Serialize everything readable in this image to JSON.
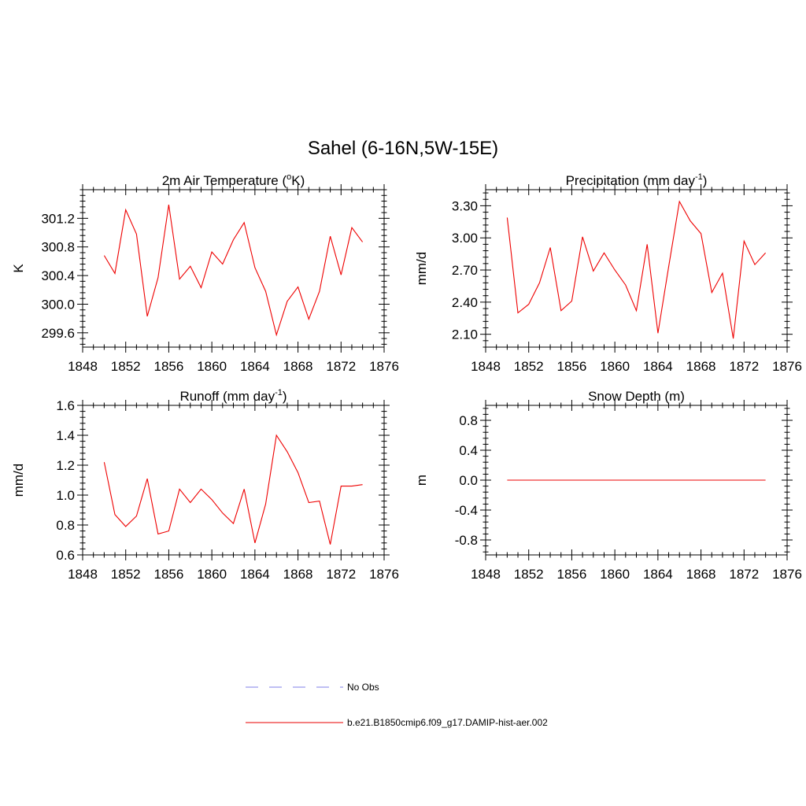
{
  "figure": {
    "title": "Sahel (6-16N,5W-15E)"
  },
  "legend": {
    "items": [
      {
        "label": "No Obs",
        "color": "#9999ee",
        "dash": true
      },
      {
        "label": "b.e21.B1850cmip6.f09_g17.DAMIP-hist-aer.002",
        "color": "#ee3333",
        "dash": false
      }
    ]
  },
  "chart_data": [
    {
      "type": "line",
      "title": "2m Air Temperature (oK)",
      "title_parts": {
        "pre": "2m Air Temperature (",
        "sup": "o",
        "post": "K)"
      },
      "ylabel": "K",
      "xlim": [
        1848,
        1876
      ],
      "ylim": [
        299.4,
        301.6
      ],
      "xticks": [
        1848,
        1852,
        1856,
        1860,
        1864,
        1868,
        1872,
        1876
      ],
      "yticks": [
        "299.6",
        "300.0",
        "300.4",
        "300.8",
        "301.2"
      ],
      "x": [
        1850,
        1851,
        1852,
        1853,
        1854,
        1855,
        1856,
        1857,
        1858,
        1859,
        1860,
        1861,
        1862,
        1863,
        1864,
        1865,
        1866,
        1867,
        1868,
        1869,
        1870,
        1871,
        1872,
        1873,
        1874
      ],
      "series": [
        {
          "color": "#ee0000",
          "values": [
            300.68,
            300.43,
            301.32,
            300.98,
            299.83,
            300.37,
            301.39,
            300.35,
            300.53,
            300.23,
            300.73,
            300.56,
            300.9,
            301.14,
            300.51,
            300.18,
            299.57,
            300.04,
            300.24,
            299.79,
            300.18,
            300.95,
            300.41,
            301.07,
            300.87
          ]
        }
      ]
    },
    {
      "type": "line",
      "title": "Precipitation (mm day-1)",
      "title_parts": {
        "pre": "Precipitation (mm day",
        "sup": "-1",
        "post": ")"
      },
      "ylabel": "mm/d",
      "xlim": [
        1848,
        1876
      ],
      "ylim": [
        1.98,
        3.45
      ],
      "xticks": [
        1848,
        1852,
        1856,
        1860,
        1864,
        1868,
        1872,
        1876
      ],
      "yticks": [
        "2.10",
        "2.40",
        "2.70",
        "3.00",
        "3.30"
      ],
      "x": [
        1850,
        1851,
        1852,
        1853,
        1854,
        1855,
        1856,
        1857,
        1858,
        1859,
        1860,
        1861,
        1862,
        1863,
        1864,
        1865,
        1866,
        1867,
        1868,
        1869,
        1870,
        1871,
        1872,
        1873,
        1874
      ],
      "series": [
        {
          "color": "#ee0000",
          "values": [
            3.19,
            2.3,
            2.38,
            2.58,
            2.91,
            2.32,
            2.41,
            3.01,
            2.69,
            2.86,
            2.7,
            2.56,
            2.32,
            2.94,
            2.11,
            2.73,
            3.34,
            3.16,
            3.04,
            2.49,
            2.67,
            2.06,
            2.97,
            2.75,
            2.86
          ]
        }
      ]
    },
    {
      "type": "line",
      "title": "Runoff (mm day-1)",
      "title_parts": {
        "pre": "Runoff (mm day",
        "sup": "-1",
        "post": ")"
      },
      "ylabel": "mm/d",
      "xlim": [
        1848,
        1876
      ],
      "ylim": [
        0.6,
        1.6
      ],
      "xticks": [
        1848,
        1852,
        1856,
        1860,
        1864,
        1868,
        1872,
        1876
      ],
      "yticks": [
        "0.6",
        "0.8",
        "1.0",
        "1.2",
        "1.4",
        "1.6"
      ],
      "x": [
        1850,
        1851,
        1852,
        1853,
        1854,
        1855,
        1856,
        1857,
        1858,
        1859,
        1860,
        1861,
        1862,
        1863,
        1864,
        1865,
        1866,
        1867,
        1868,
        1869,
        1870,
        1871,
        1872,
        1873,
        1874
      ],
      "series": [
        {
          "color": "#ee0000",
          "values": [
            1.22,
            0.87,
            0.79,
            0.86,
            1.11,
            0.74,
            0.76,
            1.04,
            0.95,
            1.04,
            0.97,
            0.88,
            0.81,
            1.04,
            0.68,
            0.94,
            1.4,
            1.29,
            1.15,
            0.95,
            0.96,
            0.67,
            1.06,
            1.06,
            1.07
          ]
        }
      ]
    },
    {
      "type": "line",
      "title": "Snow Depth (m)",
      "title_parts": {
        "pre": "Snow Depth (m)",
        "sup": "",
        "post": ""
      },
      "ylabel": "m",
      "xlim": [
        1848,
        1876
      ],
      "ylim": [
        -1.0,
        1.0
      ],
      "xticks": [
        1848,
        1852,
        1856,
        1860,
        1864,
        1868,
        1872,
        1876
      ],
      "yticks": [
        "-0.8",
        "-0.4",
        "0.0",
        "0.4",
        "0.8"
      ],
      "x": [
        1850,
        1851,
        1852,
        1853,
        1854,
        1855,
        1856,
        1857,
        1858,
        1859,
        1860,
        1861,
        1862,
        1863,
        1864,
        1865,
        1866,
        1867,
        1868,
        1869,
        1870,
        1871,
        1872,
        1873,
        1874
      ],
      "series": [
        {
          "color": "#ee0000",
          "values": [
            0,
            0,
            0,
            0,
            0,
            0,
            0,
            0,
            0,
            0,
            0,
            0,
            0,
            0,
            0,
            0,
            0,
            0,
            0,
            0,
            0,
            0,
            0,
            0,
            0
          ]
        }
      ]
    }
  ]
}
